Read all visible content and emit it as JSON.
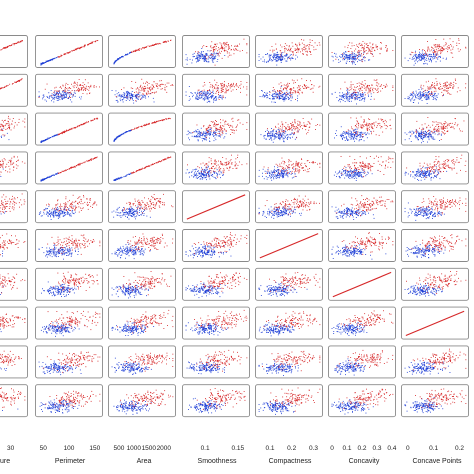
{
  "chart_data": {
    "type": "scatter",
    "title": "",
    "grid": false,
    "colors": {
      "group_a": "#d62728",
      "group_b": "#1f3fd6",
      "panel_border": "#8a8a8a",
      "diagonal_line": "#d62728"
    },
    "panel_rows": 10,
    "first_column_label": "ure",
    "first_column_tick": "30",
    "columns": [
      {
        "label": "Perimeter",
        "ticks": [
          "50",
          "100",
          "150"
        ]
      },
      {
        "label": "Area",
        "ticks": [
          "500",
          "1000",
          "1500",
          "2000"
        ]
      },
      {
        "label": "Smoothness",
        "ticks": [
          "0.1",
          "0.15"
        ]
      },
      {
        "label": "Compactness",
        "ticks": [
          "0.1",
          "0.2",
          "0.3"
        ]
      },
      {
        "label": "Concavity",
        "ticks": [
          "0",
          "0.1",
          "0.2",
          "0.3",
          "0.4"
        ]
      },
      {
        "label": "Concave Points",
        "ticks": [
          "0",
          "0.1",
          "0.2"
        ]
      }
    ],
    "panel_patterns": [
      [
        "partial-line",
        "line",
        "curve",
        "cloud",
        "cloud",
        "cloud",
        "cloud"
      ],
      [
        "partial-line",
        "cloud",
        "cloud",
        "cloud",
        "cloud",
        "cloud",
        "cloud"
      ],
      [
        "partial-cloud",
        "line",
        "curve",
        "cloud",
        "cloud",
        "cloud",
        "cloud"
      ],
      [
        "partial-cloud",
        "line",
        "line",
        "cloud",
        "cloud",
        "cloud",
        "cloud"
      ],
      [
        "partial-cloud",
        "cloud",
        "cloud",
        "diagonal",
        "cloud",
        "cloud",
        "cloud"
      ],
      [
        "partial-cloud",
        "cloud",
        "cloud",
        "cloud",
        "diagonal",
        "cloud",
        "cloud"
      ],
      [
        "partial-cloud",
        "cloud",
        "cloud",
        "cloud",
        "cloud",
        "diagonal",
        "cloud"
      ],
      [
        "partial-cloud",
        "cloud",
        "cloud",
        "cloud",
        "cloud",
        "cloud",
        "diagonal"
      ],
      [
        "partial-cloud",
        "cloud",
        "cloud",
        "cloud",
        "cloud",
        "cloud",
        "cloud"
      ],
      [
        "partial-cloud",
        "cloud",
        "cloud",
        "cloud",
        "cloud",
        "cloud",
        "cloud"
      ]
    ]
  }
}
